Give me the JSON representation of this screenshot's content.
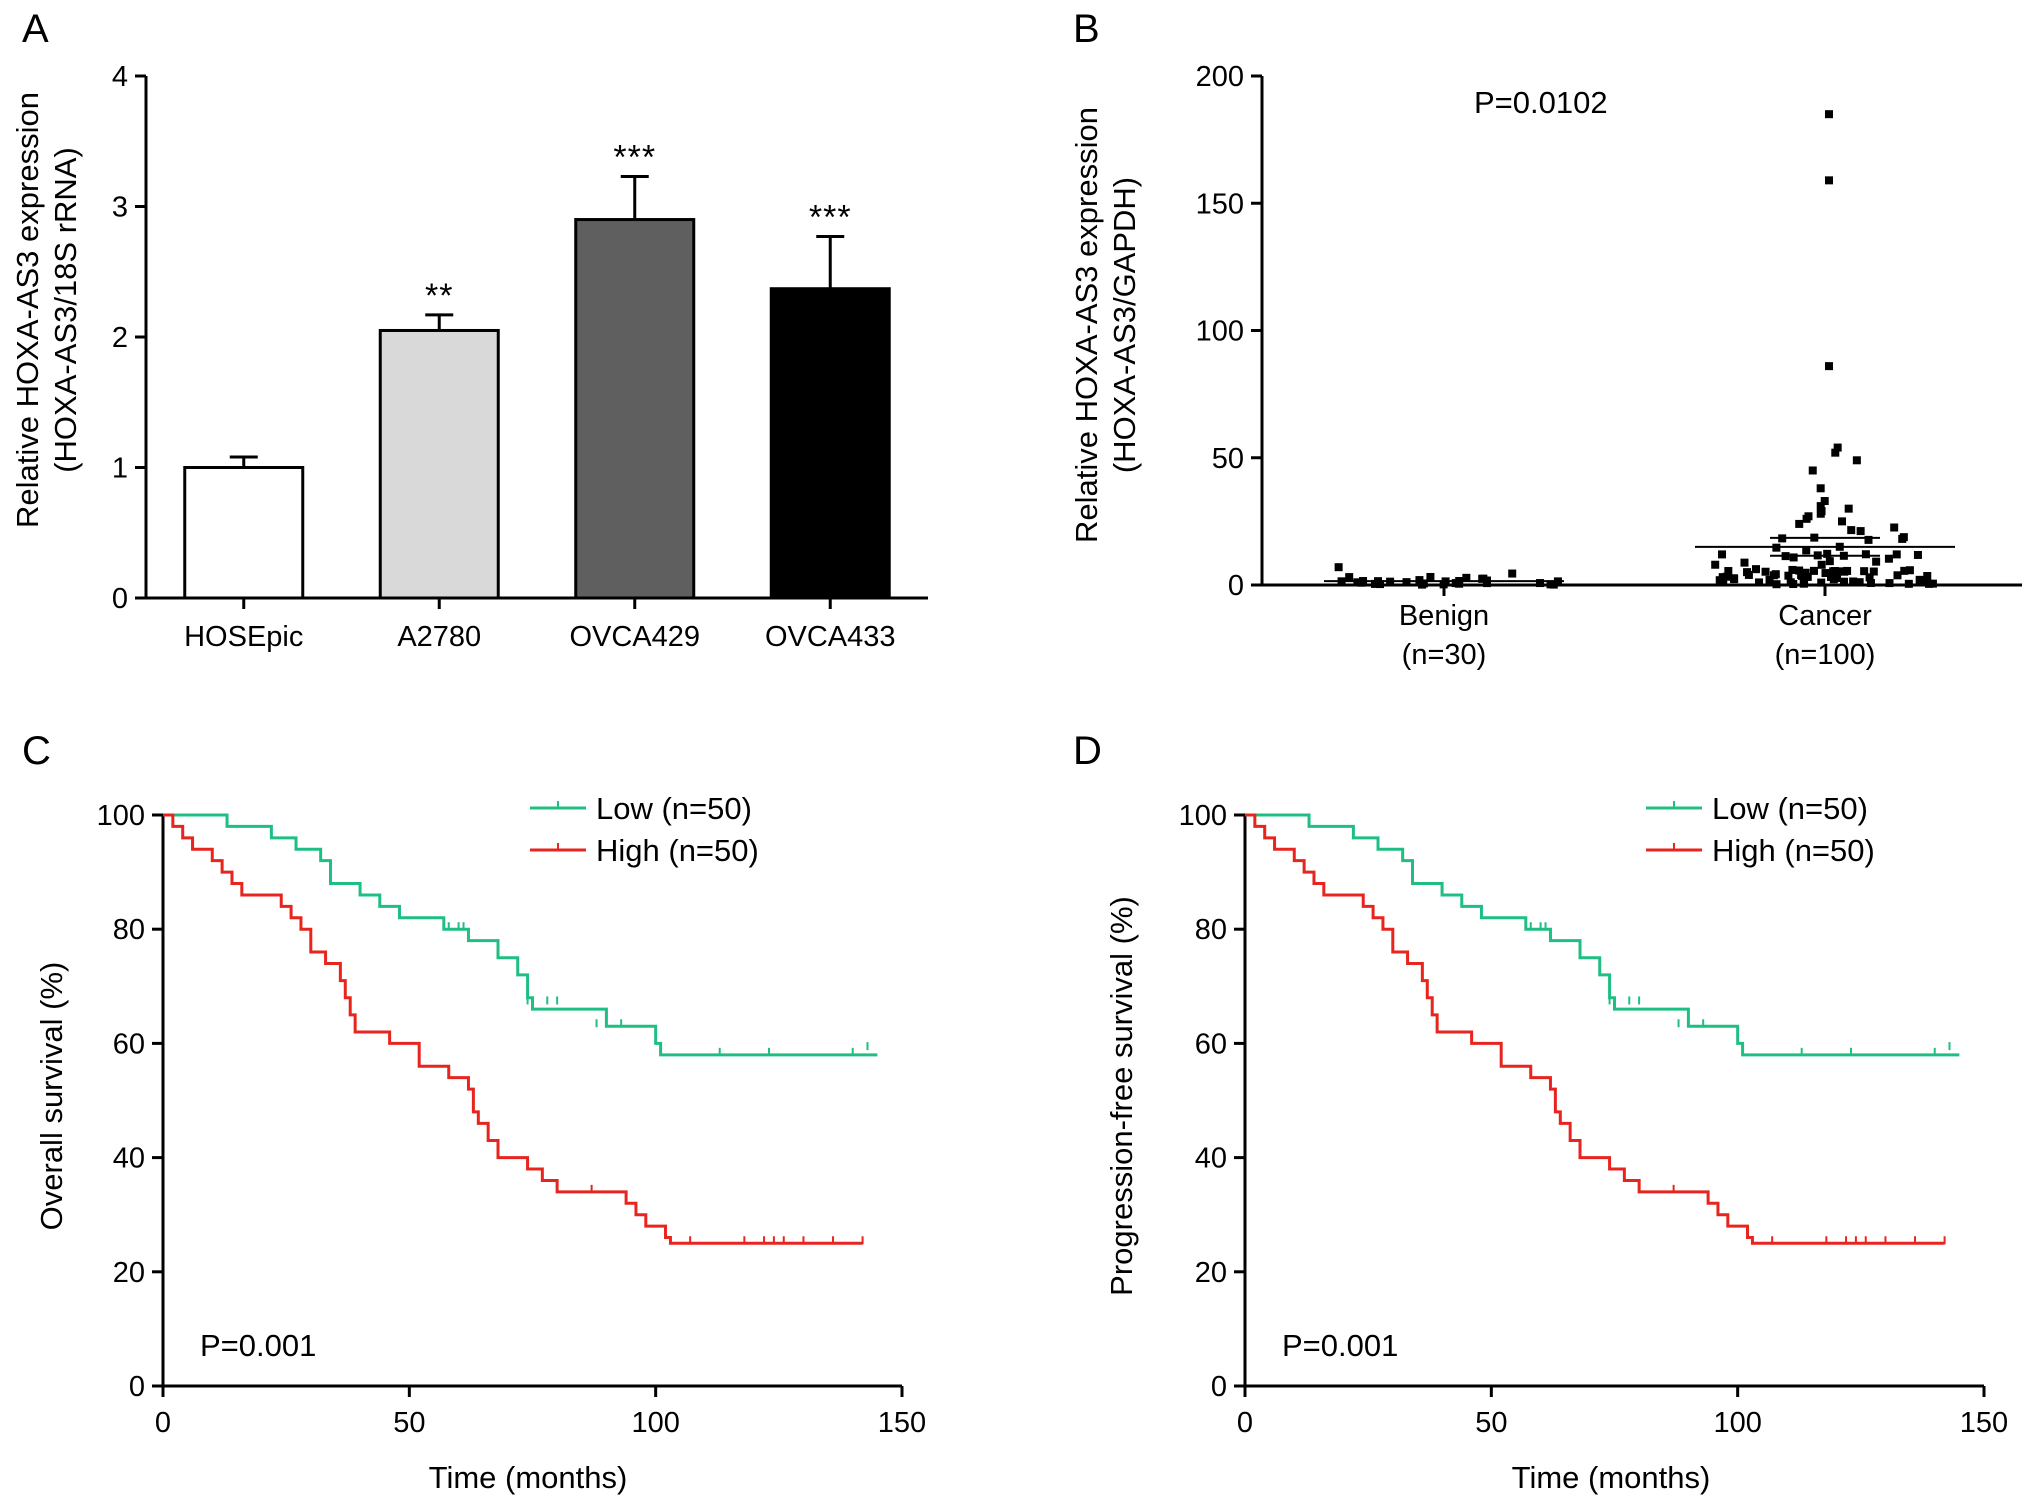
{
  "chart_data": [
    {
      "panel": "A",
      "type": "bar",
      "ylabel_line1": "Relative HOXA-AS3 expression",
      "ylabel_line2": "(HOXA-AS3/18S rRNA)",
      "categories": [
        "HOSEpic",
        "A2780",
        "OVCA429",
        "OVCA433"
      ],
      "values": [
        1.0,
        2.05,
        2.9,
        2.37
      ],
      "errors": [
        0.08,
        0.12,
        0.33,
        0.4
      ],
      "significance": [
        "",
        "**",
        "***",
        "***"
      ],
      "colors": [
        "#ffffff",
        "#d9d9d9",
        "#5f5f5f",
        "#000000"
      ],
      "ylim": [
        0,
        4
      ],
      "yticks": [
        0,
        1,
        2,
        3,
        4
      ]
    },
    {
      "panel": "B",
      "type": "scatter",
      "ylabel_line1": "Relative HOXA-AS3 expression",
      "ylabel_line2": "(HOXA-AS3/GAPDH)",
      "groups": [
        {
          "name": "Benign",
          "n_label": "(n=30)",
          "mean": 1.5
        },
        {
          "name": "Cancer",
          "n_label": "(n=100)",
          "mean": 15
        }
      ],
      "cancer_high_outliers": [
        185,
        159,
        86,
        54,
        52,
        49,
        45,
        38,
        33,
        31,
        30,
        29,
        28,
        27,
        26,
        25,
        24
      ],
      "benign_max": 7,
      "ylim": [
        0,
        200
      ],
      "yticks": [
        0,
        50,
        100,
        150,
        200
      ],
      "pvalue": "P=0.0102"
    },
    {
      "panel": "C",
      "type": "line",
      "ylabel": "Overall survival (%)",
      "xlabel": "Time (months)",
      "xlim": [
        0,
        150
      ],
      "ylim": [
        0,
        100
      ],
      "xticks": [
        0,
        50,
        100,
        150
      ],
      "yticks": [
        0,
        20,
        40,
        60,
        80,
        100
      ],
      "pvalue": "P=0.001",
      "series": [
        {
          "name": "Low (n=50)",
          "color": "#1fbf83",
          "steps": [
            [
              0,
              100
            ],
            [
              13,
              98
            ],
            [
              22,
              96
            ],
            [
              27,
              94
            ],
            [
              32,
              92
            ],
            [
              34,
              88
            ],
            [
              40,
              86
            ],
            [
              44,
              84
            ],
            [
              48,
              82
            ],
            [
              57,
              80
            ],
            [
              62,
              78
            ],
            [
              68,
              75
            ],
            [
              72,
              72
            ],
            [
              74,
              68
            ],
            [
              75,
              66
            ],
            [
              90,
              63
            ],
            [
              100,
              60
            ],
            [
              101,
              58
            ],
            [
              145,
              58
            ]
          ],
          "censors": [
            [
              58,
              80
            ],
            [
              60,
              80
            ],
            [
              61,
              80
            ],
            [
              74,
              67
            ],
            [
              78,
              67
            ],
            [
              80,
              67
            ],
            [
              88,
              63
            ],
            [
              93,
              63
            ],
            [
              113,
              58
            ],
            [
              123,
              58
            ],
            [
              140,
              58
            ],
            [
              143,
              59
            ]
          ]
        },
        {
          "name": "High (n=50)",
          "color": "#e8241f",
          "steps": [
            [
              0,
              100
            ],
            [
              2,
              98
            ],
            [
              4,
              96
            ],
            [
              6,
              94
            ],
            [
              10,
              92
            ],
            [
              12,
              90
            ],
            [
              14,
              88
            ],
            [
              16,
              86
            ],
            [
              24,
              84
            ],
            [
              26,
              82
            ],
            [
              28,
              80
            ],
            [
              30,
              76
            ],
            [
              33,
              74
            ],
            [
              36,
              71
            ],
            [
              37,
              68
            ],
            [
              38,
              65
            ],
            [
              39,
              62
            ],
            [
              43,
              62
            ],
            [
              46,
              60
            ],
            [
              52,
              56
            ],
            [
              58,
              54
            ],
            [
              62,
              52
            ],
            [
              63,
              48
            ],
            [
              64,
              46
            ],
            [
              66,
              43
            ],
            [
              68,
              40
            ],
            [
              74,
              38
            ],
            [
              77,
              36
            ],
            [
              80,
              34
            ],
            [
              94,
              32
            ],
            [
              96,
              30
            ],
            [
              98,
              28
            ],
            [
              102,
              26
            ],
            [
              103,
              25
            ],
            [
              142,
              25
            ]
          ],
          "censors": [
            [
              87,
              34
            ],
            [
              107,
              25
            ],
            [
              118,
              25
            ],
            [
              122,
              25
            ],
            [
              124,
              25
            ],
            [
              126,
              25
            ],
            [
              130,
              25
            ],
            [
              136,
              25
            ],
            [
              142,
              25
            ]
          ]
        }
      ]
    },
    {
      "panel": "D",
      "type": "line",
      "ylabel": "Progression-free survival (%)",
      "xlabel": "Time (months)",
      "xlim": [
        0,
        150
      ],
      "ylim": [
        0,
        100
      ],
      "xticks": [
        0,
        50,
        100,
        150
      ],
      "yticks": [
        0,
        20,
        40,
        60,
        80,
        100
      ],
      "pvalue": "P=0.001",
      "series": [
        {
          "name": "Low (n=50)",
          "color": "#1fbf83",
          "steps": [
            [
              0,
              100
            ],
            [
              13,
              98
            ],
            [
              22,
              96
            ],
            [
              27,
              94
            ],
            [
              32,
              92
            ],
            [
              34,
              88
            ],
            [
              40,
              86
            ],
            [
              44,
              84
            ],
            [
              48,
              82
            ],
            [
              57,
              80
            ],
            [
              62,
              78
            ],
            [
              68,
              75
            ],
            [
              72,
              72
            ],
            [
              74,
              68
            ],
            [
              75,
              66
            ],
            [
              90,
              63
            ],
            [
              100,
              60
            ],
            [
              101,
              58
            ],
            [
              145,
              58
            ]
          ],
          "censors": [
            [
              58,
              80
            ],
            [
              60,
              80
            ],
            [
              61,
              80
            ],
            [
              74,
              67
            ],
            [
              78,
              67
            ],
            [
              80,
              67
            ],
            [
              88,
              63
            ],
            [
              93,
              63
            ],
            [
              113,
              58
            ],
            [
              123,
              58
            ],
            [
              140,
              58
            ],
            [
              143,
              59
            ]
          ]
        },
        {
          "name": "High (n=50)",
          "color": "#e8241f",
          "steps": [
            [
              0,
              100
            ],
            [
              2,
              98
            ],
            [
              4,
              96
            ],
            [
              6,
              94
            ],
            [
              10,
              92
            ],
            [
              12,
              90
            ],
            [
              14,
              88
            ],
            [
              16,
              86
            ],
            [
              24,
              84
            ],
            [
              26,
              82
            ],
            [
              28,
              80
            ],
            [
              30,
              76
            ],
            [
              33,
              74
            ],
            [
              36,
              71
            ],
            [
              37,
              68
            ],
            [
              38,
              65
            ],
            [
              39,
              62
            ],
            [
              43,
              62
            ],
            [
              46,
              60
            ],
            [
              52,
              56
            ],
            [
              58,
              54
            ],
            [
              62,
              52
            ],
            [
              63,
              48
            ],
            [
              64,
              46
            ],
            [
              66,
              43
            ],
            [
              68,
              40
            ],
            [
              74,
              38
            ],
            [
              77,
              36
            ],
            [
              80,
              34
            ],
            [
              94,
              32
            ],
            [
              96,
              30
            ],
            [
              98,
              28
            ],
            [
              102,
              26
            ],
            [
              103,
              25
            ],
            [
              142,
              25
            ]
          ],
          "censors": [
            [
              87,
              34
            ],
            [
              107,
              25
            ],
            [
              118,
              25
            ],
            [
              122,
              25
            ],
            [
              124,
              25
            ],
            [
              126,
              25
            ],
            [
              130,
              25
            ],
            [
              136,
              25
            ],
            [
              142,
              25
            ]
          ]
        }
      ]
    }
  ]
}
